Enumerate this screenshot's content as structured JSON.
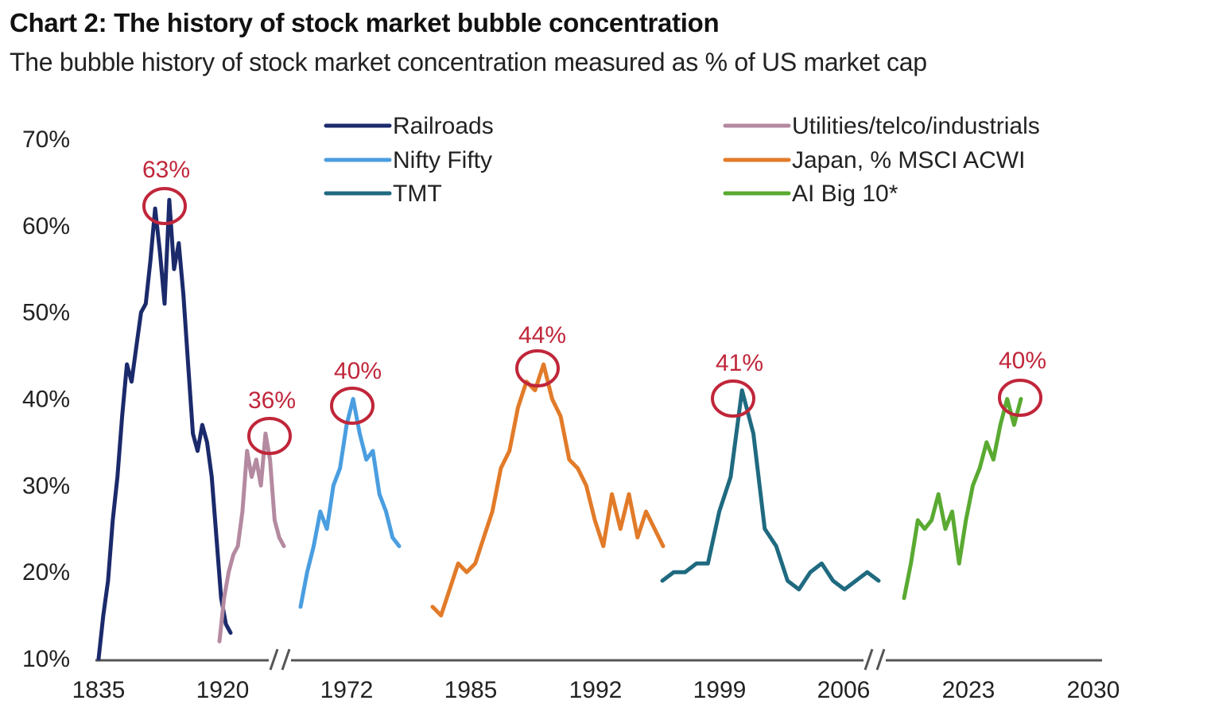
{
  "title": "Chart 2: The history of stock market bubble concentration",
  "subtitle": "The bubble history of stock market concentration measured as % of US market cap",
  "chart_data": {
    "type": "line",
    "ylim": [
      10,
      70
    ],
    "y_ticks": [
      "10%",
      "20%",
      "30%",
      "40%",
      "50%",
      "60%",
      "70%"
    ],
    "x_ticks": [
      "1835",
      "1920",
      "1972",
      "1985",
      "1992",
      "1999",
      "2006",
      "2023",
      "2030"
    ],
    "grid": false,
    "legend_position": "top",
    "axis_breaks": 2,
    "series": [
      {
        "name": "Railroads",
        "color": "#1b2a6b",
        "values": [
          10,
          15,
          19,
          26,
          31,
          38,
          44,
          42,
          46,
          50,
          51,
          56,
          62,
          57,
          51,
          63,
          55,
          58,
          52,
          44,
          36,
          34,
          37,
          35,
          31,
          24,
          17,
          14,
          13
        ]
      },
      {
        "name": "Utilities/telco/industrials",
        "color": "#b48aa0",
        "values": [
          12,
          17,
          20,
          22,
          23,
          27,
          34,
          31,
          33,
          30,
          36,
          33,
          26,
          24,
          23
        ]
      },
      {
        "name": "Nifty Fifty",
        "color": "#4a9ee0",
        "values": [
          16,
          20,
          23,
          27,
          25,
          30,
          32,
          37,
          40,
          36,
          33,
          34,
          29,
          27,
          24,
          23
        ]
      },
      {
        "name": "Japan, % MSCI ACWI",
        "color": "#e27b29",
        "values": [
          16,
          15,
          18,
          21,
          20,
          21,
          24,
          27,
          32,
          34,
          39,
          42,
          41,
          44,
          40,
          38,
          33,
          32,
          30,
          26,
          23,
          29,
          25,
          29,
          24,
          27,
          25,
          23
        ]
      },
      {
        "name": "TMT",
        "color": "#1f6a80",
        "values": [
          19,
          20,
          20,
          21,
          21,
          27,
          31,
          41,
          36,
          25,
          23,
          19,
          18,
          20,
          21,
          19,
          18,
          19,
          20,
          19
        ]
      },
      {
        "name": "AI Big 10*",
        "color": "#5aaa32",
        "values": [
          17,
          21,
          26,
          25,
          26,
          29,
          25,
          27,
          21,
          26,
          30,
          32,
          35,
          33,
          37,
          40,
          37,
          40
        ]
      }
    ],
    "annotations": [
      "63%",
      "36%",
      "40%",
      "44%",
      "41%",
      "40%"
    ]
  },
  "colors": {
    "axis": "#555555",
    "annotation": "#c0263a"
  }
}
